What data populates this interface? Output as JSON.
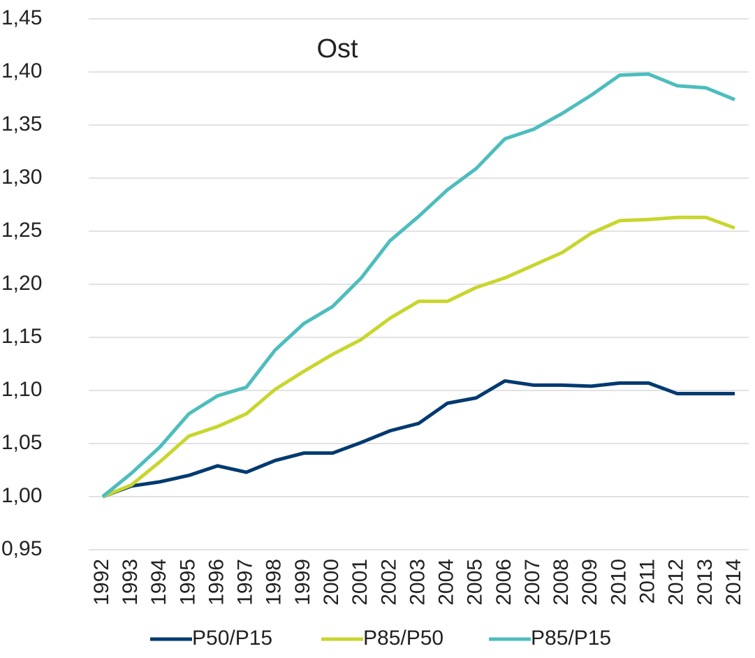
{
  "chart_data": {
    "type": "line",
    "title": "Ost",
    "categories": [
      "1992",
      "1993",
      "1994",
      "1995",
      "1996",
      "1997",
      "1998",
      "1999",
      "2000",
      "2001",
      "2002",
      "2003",
      "2004",
      "2005",
      "2006",
      "2007",
      "2008",
      "2009",
      "2010",
      "2011",
      "2012",
      "2013",
      "2014"
    ],
    "series": [
      {
        "name": "P50/P15",
        "color": "#003a70",
        "values": [
          1.0,
          1.01,
          1.014,
          1.02,
          1.029,
          1.023,
          1.034,
          1.041,
          1.041,
          1.051,
          1.062,
          1.069,
          1.088,
          1.093,
          1.109,
          1.105,
          1.105,
          1.104,
          1.107,
          1.107,
          1.097,
          1.097,
          1.097
        ]
      },
      {
        "name": "P85/P50",
        "color": "#c8d62e",
        "values": [
          1.0,
          1.011,
          1.033,
          1.057,
          1.066,
          1.078,
          1.101,
          1.118,
          1.134,
          1.148,
          1.168,
          1.184,
          1.184,
          1.197,
          1.206,
          1.218,
          1.23,
          1.248,
          1.26,
          1.261,
          1.263,
          1.263,
          1.253
        ]
      },
      {
        "name": "P85/P15",
        "color": "#4dbdbd",
        "values": [
          1.0,
          1.022,
          1.047,
          1.078,
          1.095,
          1.103,
          1.138,
          1.163,
          1.179,
          1.206,
          1.241,
          1.264,
          1.289,
          1.309,
          1.337,
          1.346,
          1.361,
          1.378,
          1.397,
          1.398,
          1.387,
          1.385,
          1.374
        ]
      }
    ],
    "ylim": [
      0.95,
      1.45
    ],
    "yticks": [
      {
        "value": 0.95,
        "label": "0,95"
      },
      {
        "value": 1.0,
        "label": "1,00"
      },
      {
        "value": 1.05,
        "label": "1,05"
      },
      {
        "value": 1.1,
        "label": "1,10"
      },
      {
        "value": 1.15,
        "label": "1,15"
      },
      {
        "value": 1.2,
        "label": "1,20"
      },
      {
        "value": 1.25,
        "label": "1,25"
      },
      {
        "value": 1.3,
        "label": "1,30"
      },
      {
        "value": 1.35,
        "label": "1,35"
      },
      {
        "value": 1.4,
        "label": "1,40"
      },
      {
        "value": 1.45,
        "label": "1,45"
      }
    ],
    "grid": true,
    "legend": "bottom"
  }
}
